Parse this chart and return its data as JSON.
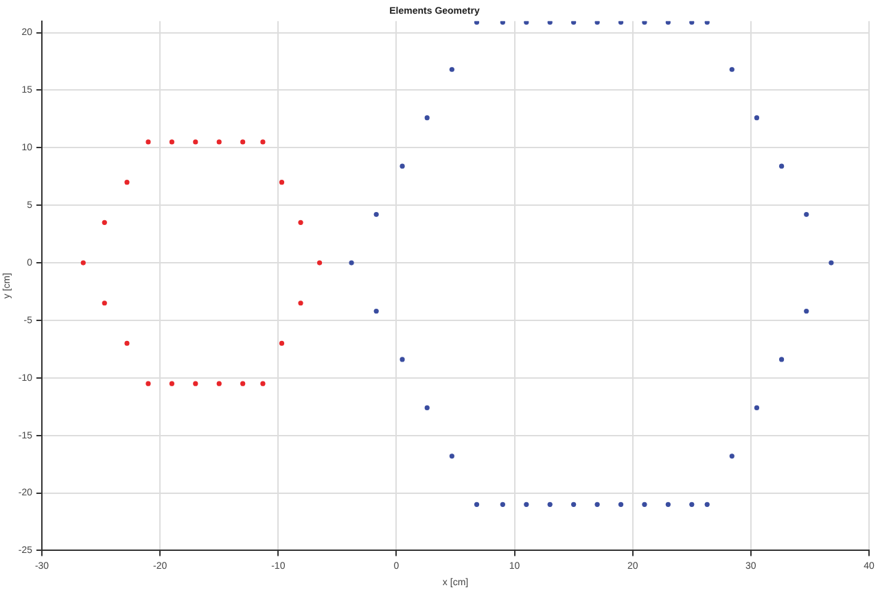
{
  "chart_data": {
    "type": "scatter",
    "title": "Elements Geometry",
    "xlabel": "x [cm]",
    "ylabel": "y [cm]",
    "series": [
      {
        "color": "#e8262a",
        "x": [
          -21,
          -19,
          -17,
          -15,
          -13,
          -11.3,
          -9.7,
          -8.1,
          -6.5,
          -8.1,
          -9.7,
          -11.3,
          -13,
          -15,
          -17,
          -19,
          -21,
          -22.8,
          -24.7,
          -26.5,
          -24.7,
          -22.8
        ],
        "values": [
          10.5,
          10.5,
          10.5,
          10.5,
          10.5,
          10.5,
          7,
          3.5,
          0,
          -3.5,
          -7,
          -10.5,
          -10.5,
          -10.5,
          -10.5,
          -10.5,
          -10.5,
          -7,
          -3.5,
          0,
          3.5,
          7
        ]
      },
      {
        "color": "#3a4da0",
        "x": [
          6.8,
          9,
          11,
          13,
          15,
          17,
          19,
          21,
          23,
          25,
          26.3,
          28.4,
          30.5,
          32.6,
          34.7,
          36.8,
          34.7,
          32.6,
          30.5,
          28.4,
          26.3,
          25,
          23,
          21,
          19,
          17,
          15,
          13,
          11,
          9,
          6.8,
          4.7,
          2.6,
          0.5,
          -1.7,
          -3.8,
          -1.7,
          0.5,
          2.6,
          4.7
        ],
        "values": [
          20.9,
          20.9,
          20.9,
          20.9,
          20.9,
          20.9,
          20.9,
          20.9,
          20.9,
          20.9,
          20.9,
          16.8,
          12.6,
          8.4,
          4.2,
          0,
          -4.2,
          -8.4,
          -12.6,
          -16.8,
          -21,
          -21,
          -21,
          -21,
          -21,
          -21,
          -21,
          -21,
          -21,
          -21,
          -21,
          -16.8,
          -12.6,
          -8.4,
          -4.2,
          0,
          4.2,
          8.4,
          12.6,
          16.8
        ]
      }
    ],
    "xlim": [
      -30,
      40
    ],
    "xticks": [
      -30,
      -20,
      -10,
      0,
      10,
      20,
      30,
      40
    ],
    "ylim": [
      -25,
      21
    ],
    "yticks": [
      -25,
      -20,
      -15,
      -10,
      -5,
      0,
      5,
      10,
      15,
      20
    ],
    "grid": true,
    "marker": "circle"
  }
}
